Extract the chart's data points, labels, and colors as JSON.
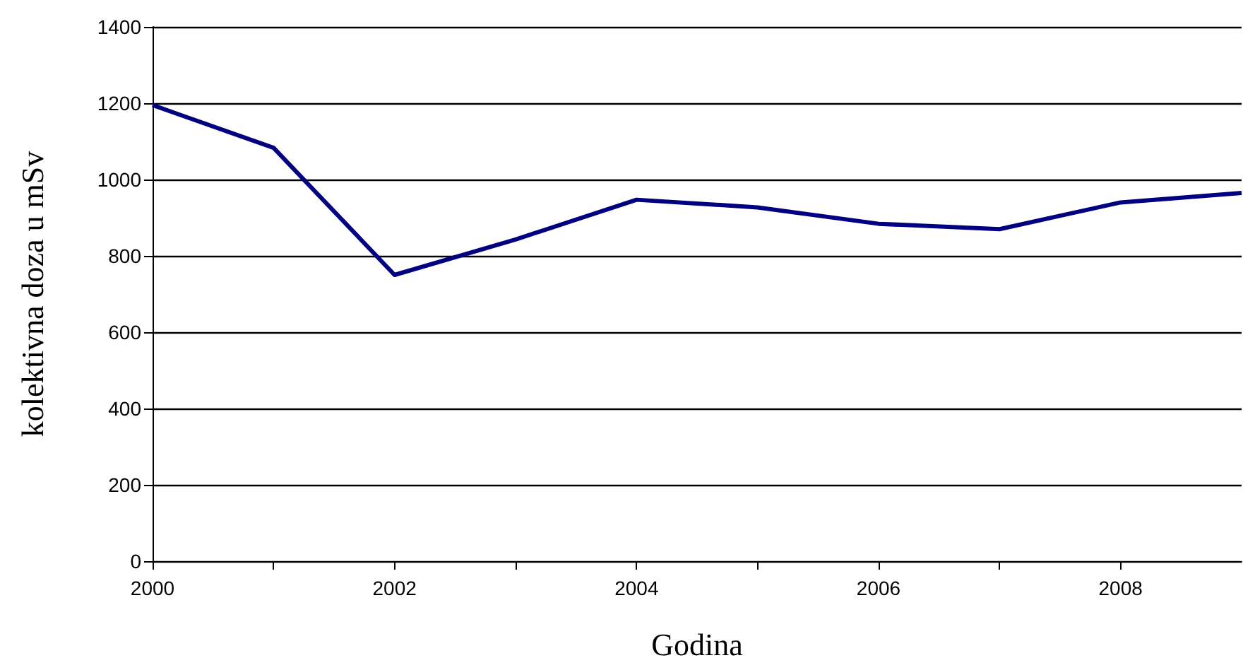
{
  "chart_data": {
    "type": "line",
    "xlabel": "Godina",
    "ylabel": "kolektivna doza u mSv",
    "x": [
      2000,
      2001,
      2002,
      2003,
      2004,
      2005,
      2006,
      2007,
      2008,
      2009
    ],
    "series": [
      {
        "color": "#000080",
        "values": [
          1195,
          1083,
          750,
          843,
          947,
          927,
          884,
          870,
          940,
          965
        ]
      }
    ],
    "xlim": [
      2000,
      2009
    ],
    "xticks": [
      2000,
      {
        "value": 2001,
        "label": null
      },
      2002,
      {
        "value": 2003,
        "label": null
      },
      2004,
      {
        "value": 2005,
        "label": null
      },
      2006,
      {
        "value": 2007,
        "label": null
      },
      2008
    ],
    "ylim": [
      0,
      1400
    ],
    "yticks": [
      0,
      200,
      400,
      600,
      800,
      1000,
      1200,
      1400
    ],
    "grid": "y",
    "marker": "none",
    "line_style": "solid"
  }
}
